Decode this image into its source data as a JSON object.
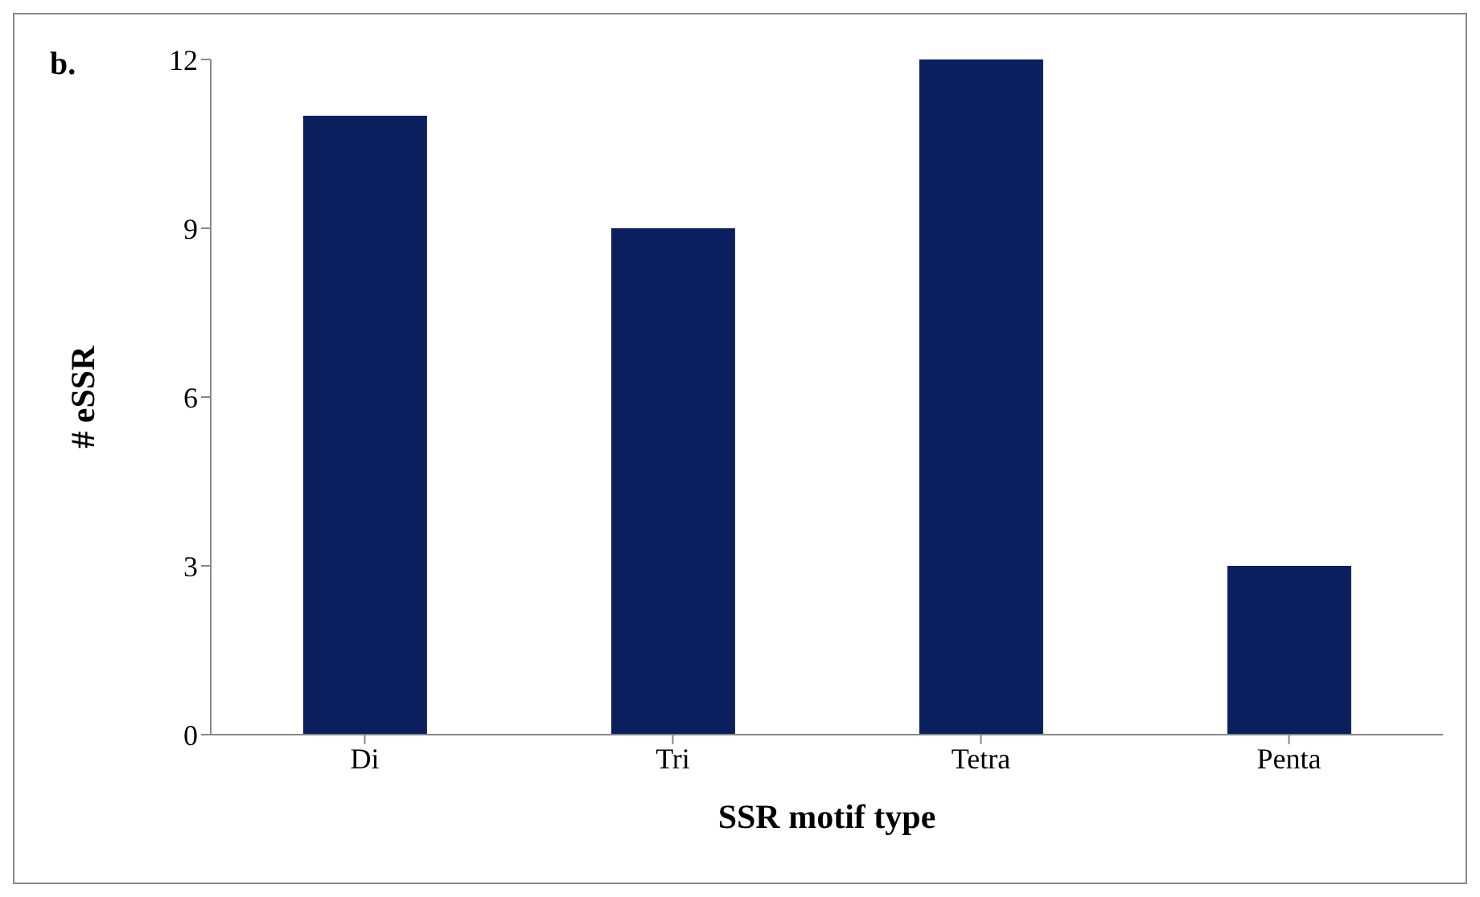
{
  "chart_data": {
    "type": "bar",
    "xlabel": "SSR motif type",
    "ylabel": "# eSSR",
    "annotations": [
      "b."
    ],
    "categories": [
      "Di",
      "Tri",
      "Tetra",
      "Penta"
    ],
    "values": [
      11,
      9,
      12,
      3
    ],
    "color": "#0b1f5e",
    "ylim": [
      0,
      12
    ],
    "yticks": [
      0,
      3,
      6,
      9,
      12
    ],
    "grid": false,
    "legend": false
  }
}
